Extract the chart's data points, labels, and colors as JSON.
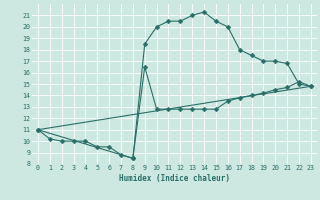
{
  "xlabel": "Humidex (Indice chaleur)",
  "bg_color": "#cce8e0",
  "grid_color": "#ffffff",
  "line_color": "#2a6e68",
  "xlim": [
    -0.5,
    23.5
  ],
  "ylim": [
    8,
    22
  ],
  "xticks": [
    0,
    1,
    2,
    3,
    4,
    5,
    6,
    7,
    8,
    9,
    10,
    11,
    12,
    13,
    14,
    15,
    16,
    17,
    18,
    19,
    20,
    21,
    22,
    23
  ],
  "yticks": [
    8,
    9,
    10,
    11,
    12,
    13,
    14,
    15,
    16,
    17,
    18,
    19,
    20,
    21
  ],
  "line1_x": [
    0,
    1,
    2,
    3,
    4,
    5,
    6,
    7,
    8,
    9,
    10,
    11,
    12,
    13,
    14,
    15,
    16,
    17,
    18,
    19,
    20,
    21,
    22,
    23
  ],
  "line1_y": [
    11,
    10.2,
    10,
    10,
    10,
    9.5,
    9.5,
    8.8,
    8.5,
    18.5,
    20,
    20.5,
    20.5,
    21,
    21.3,
    20.5,
    20,
    18,
    17.5,
    17,
    17,
    16.8,
    15,
    14.8
  ],
  "line2_x": [
    0,
    8,
    9,
    10,
    11,
    12,
    13,
    14,
    15,
    16,
    17,
    18,
    19,
    20,
    21,
    22,
    23
  ],
  "line2_y": [
    11,
    8.5,
    16.5,
    12.8,
    12.8,
    12.8,
    12.8,
    12.8,
    12.8,
    13.5,
    13.8,
    14.0,
    14.2,
    14.5,
    14.7,
    15.2,
    14.8
  ],
  "line3_x": [
    0,
    23
  ],
  "line3_y": [
    11,
    14.8
  ],
  "marker_size": 2.5,
  "linewidth": 0.8
}
